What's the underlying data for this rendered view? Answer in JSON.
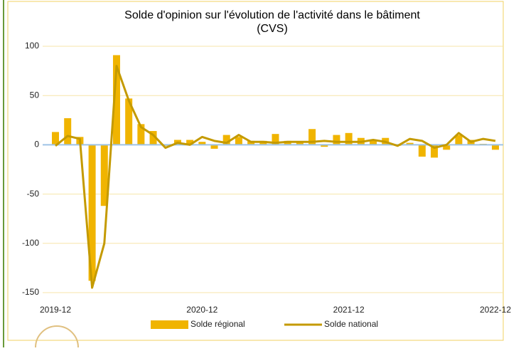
{
  "chart_data": {
    "type": "bar-line",
    "title": [
      "Solde d'opinion sur l'évolution de l'activité dans le bâtiment",
      "(CVS)"
    ],
    "categories": [
      "2019-12",
      null,
      null,
      null,
      null,
      null,
      null,
      null,
      null,
      null,
      null,
      null,
      "2020-12",
      null,
      null,
      null,
      null,
      null,
      null,
      null,
      null,
      null,
      null,
      null,
      "2021-12",
      null,
      null,
      null,
      null,
      null,
      null,
      null,
      null,
      null,
      null,
      null,
      "2022-12"
    ],
    "series": [
      {
        "name": "Solde régional",
        "type": "bar",
        "color": "#f0b400",
        "values": [
          13,
          27,
          8,
          -138,
          -62,
          91,
          47,
          21,
          14,
          -1,
          5,
          5,
          3,
          -4,
          10,
          8,
          4,
          4,
          11,
          4,
          3,
          16,
          -2,
          10,
          12,
          7,
          4,
          7,
          -1,
          2,
          -12,
          -13,
          -5,
          10,
          5,
          1,
          -5
        ]
      },
      {
        "name": "Solde national",
        "type": "line",
        "color": "#c49a00",
        "values": [
          -1,
          9,
          6,
          -145,
          -100,
          80,
          45,
          18,
          10,
          -3,
          2,
          0,
          8,
          4,
          2,
          10,
          3,
          3,
          2,
          3,
          3,
          3,
          4,
          3,
          3,
          3,
          5,
          3,
          -1,
          6,
          4,
          -3,
          0,
          12,
          3,
          6,
          4
        ]
      }
    ],
    "ylim": [
      -150,
      100
    ],
    "yticks": [
      -150,
      -100,
      -50,
      0,
      50,
      100
    ],
    "grid": true,
    "legend": "bottom"
  }
}
